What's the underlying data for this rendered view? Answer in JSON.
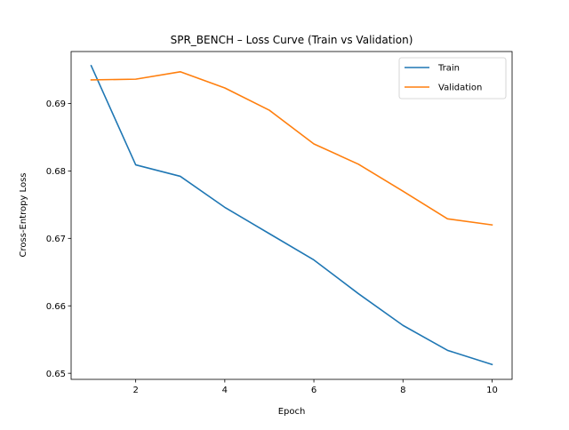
{
  "chart_data": {
    "type": "line",
    "title": "SPR_BENCH – Loss Curve (Train vs Validation)",
    "xlabel": "Epoch",
    "ylabel": "Cross-Entropy Loss",
    "xlim": [
      0.55,
      10.45
    ],
    "ylim": [
      0.6491,
      0.6977
    ],
    "xticks": [
      2,
      4,
      6,
      8,
      10
    ],
    "yticks": [
      0.65,
      0.66,
      0.67,
      0.68,
      0.69
    ],
    "xtick_labels": [
      "2",
      "4",
      "6",
      "8",
      "10"
    ],
    "ytick_labels": [
      "0.65",
      "0.66",
      "0.67",
      "0.68",
      "0.69"
    ],
    "grid": false,
    "legend_position": "top-right",
    "x": [
      1,
      2,
      3,
      4,
      5,
      6,
      7,
      8,
      9,
      10
    ],
    "series": [
      {
        "name": "Train",
        "color": "#1f77b4",
        "values": [
          0.6956,
          0.6809,
          0.6792,
          0.6746,
          0.6707,
          0.6668,
          0.6618,
          0.6571,
          0.6534,
          0.6513
        ]
      },
      {
        "name": "Validation",
        "color": "#ff7f0e",
        "values": [
          0.6935,
          0.6936,
          0.6947,
          0.6923,
          0.689,
          0.684,
          0.681,
          0.677,
          0.6729,
          0.672
        ]
      }
    ]
  }
}
